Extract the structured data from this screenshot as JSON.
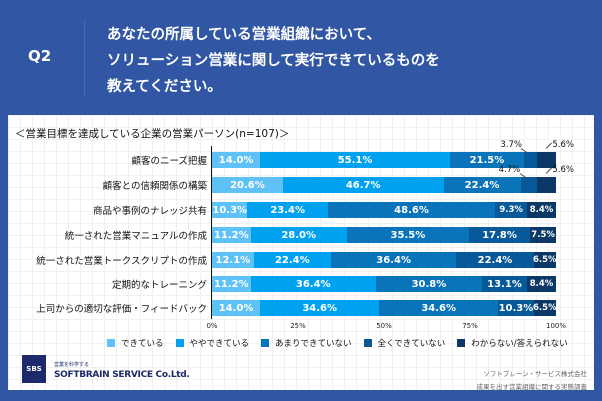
{
  "header": {
    "q": "Q2",
    "question_lines": [
      "あなたの所属している営業組織において、",
      "ソリューション営業に関して実行できているものを",
      "教えてください。"
    ]
  },
  "chart_data": {
    "type": "bar",
    "orientation": "horizontal",
    "stacked": true,
    "title": "＜営業目標を達成している企業の営業パーソン(n=107)＞",
    "categories": [
      "顧客のニーズ把握",
      "顧客との信頼関係の構築",
      "商品や事例のナレッジ共有",
      "統一された営業マニュアルの作成",
      "統一された営業トークスクリプトの作成",
      "定期的なトレーニング",
      "上司からの適切な評価・フィードバック"
    ],
    "series": [
      {
        "name": "できている",
        "color": "#5ec2f7",
        "values": [
          14.0,
          20.6,
          10.3,
          11.2,
          12.1,
          11.2,
          14.0
        ]
      },
      {
        "name": "ややできている",
        "color": "#00a2ef",
        "values": [
          55.1,
          46.7,
          23.4,
          28.0,
          22.4,
          36.4,
          34.6
        ]
      },
      {
        "name": "あまりできていない",
        "color": "#0a74ba",
        "values": [
          21.5,
          22.4,
          48.6,
          35.5,
          36.4,
          30.8,
          34.6
        ]
      },
      {
        "name": "全くできていない",
        "color": "#08599a",
        "values": [
          3.7,
          4.7,
          9.3,
          17.8,
          22.4,
          13.1,
          10.3
        ]
      },
      {
        "name": "わからない/答えられない",
        "color": "#0b3866",
        "values": [
          5.6,
          5.6,
          8.4,
          7.5,
          6.5,
          8.4,
          6.5
        ]
      }
    ],
    "xlim": [
      0,
      100
    ],
    "xticks": [
      "0%",
      "25%",
      "50%",
      "75%",
      "100%"
    ],
    "legend": "bottom"
  },
  "footer": {
    "logo": "SBS",
    "tagline": "営業を科学する",
    "company": "SOFTBRAIN SERVICE Co.Ltd.",
    "source_lines": [
      "ソフトブレーン・サービス株式会社",
      "成果を出す営業組織に関する実態調査"
    ]
  }
}
